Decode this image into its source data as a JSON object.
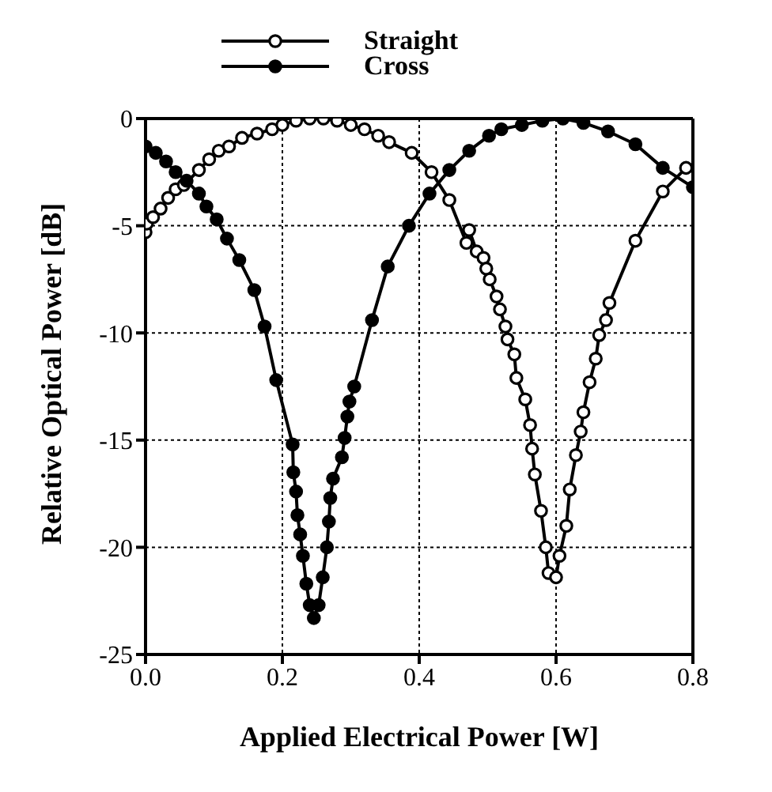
{
  "chart_data": {
    "type": "line",
    "xlabel": "Applied Electrical Power [W]",
    "ylabel": "Relative Optical Power [dB]",
    "xlim": [
      0,
      0.8
    ],
    "xticks": [
      {
        "value": 0,
        "label": "0.0"
      },
      {
        "value": 0.2,
        "label": "0.2"
      },
      {
        "value": 0.4,
        "label": "0.4"
      },
      {
        "value": 0.6,
        "label": "0.6"
      },
      {
        "value": 0.8,
        "label": "0.8"
      }
    ],
    "ylim": [
      -25,
      0
    ],
    "yticks": [
      -25,
      -20,
      -15,
      -10,
      -5,
      0
    ],
    "grid": true,
    "legend": "top",
    "marker": "circle",
    "line_style": "solid",
    "series": [
      {
        "name": "Straight",
        "color": "#000000",
        "x": [
          0,
          0.002,
          0.011,
          0.022,
          0.033,
          0.044,
          0.056,
          0.078,
          0.093,
          0.107,
          0.122,
          0.141,
          0.163,
          0.185,
          0.2,
          0.22,
          0.24,
          0.26,
          0.28,
          0.3,
          0.32,
          0.34,
          0.356,
          0.389,
          0.418,
          0.444,
          0.469,
          0.473,
          0.484,
          0.494,
          0.498,
          0.503,
          0.513,
          0.518,
          0.526,
          0.529,
          0.539,
          0.542,
          0.555,
          0.562,
          0.565,
          0.569,
          0.578,
          0.585,
          0.589,
          0.6,
          0.605,
          0.615,
          0.62,
          0.629,
          0.636,
          0.64,
          0.649,
          0.658,
          0.663,
          0.673,
          0.678,
          0.716,
          0.756,
          0.79
        ],
        "values": [
          -5.3,
          -4.9,
          -4.6,
          -4.2,
          -3.7,
          -3.3,
          -3.1,
          -2.4,
          -1.9,
          -1.5,
          -1.3,
          -0.9,
          -0.7,
          -0.5,
          -0.3,
          -0.1,
          0,
          0,
          -0.1,
          -0.3,
          -0.5,
          -0.8,
          -1.1,
          -1.6,
          -2.5,
          -3.8,
          -5.8,
          -5.2,
          -6.2,
          -6.5,
          -7,
          -7.5,
          -8.3,
          -8.9,
          -9.7,
          -10.3,
          -11,
          -12.1,
          -13.1,
          -14.3,
          -15.4,
          -16.6,
          -18.3,
          -20,
          -21.2,
          -21.4,
          -20.4,
          -19,
          -17.3,
          -15.7,
          -14.6,
          -13.7,
          -12.3,
          -11.2,
          -10.1,
          -9.4,
          -8.6,
          -5.7,
          -3.4,
          -2.3
        ]
      },
      {
        "name": "Cross",
        "color": "#000000",
        "x": [
          0,
          0.015,
          0.03,
          0.044,
          0.06,
          0.078,
          0.089,
          0.104,
          0.119,
          0.137,
          0.159,
          0.174,
          0.191,
          0.215,
          0.216,
          0.22,
          0.222,
          0.226,
          0.23,
          0.235,
          0.24,
          0.246,
          0.253,
          0.259,
          0.265,
          0.268,
          0.27,
          0.274,
          0.287,
          0.291,
          0.295,
          0.298,
          0.305,
          0.331,
          0.354,
          0.385,
          0.415,
          0.444,
          0.473,
          0.502,
          0.52,
          0.55,
          0.58,
          0.61,
          0.64,
          0.676,
          0.716,
          0.756,
          0.8
        ],
        "values": [
          -1.3,
          -1.6,
          -2,
          -2.5,
          -2.9,
          -3.5,
          -4.1,
          -4.7,
          -5.6,
          -6.6,
          -8,
          -9.7,
          -12.2,
          -15.2,
          -16.5,
          -17.4,
          -18.5,
          -19.4,
          -20.4,
          -21.7,
          -22.7,
          -23.3,
          -22.7,
          -21.4,
          -20,
          -18.8,
          -17.7,
          -16.8,
          -15.8,
          -14.9,
          -13.9,
          -13.2,
          -12.5,
          -9.4,
          -6.9,
          -5,
          -3.5,
          -2.4,
          -1.5,
          -0.8,
          -0.5,
          -0.3,
          -0.1,
          0,
          -0.2,
          -0.6,
          -1.2,
          -2.3,
          -3.2
        ]
      }
    ]
  }
}
